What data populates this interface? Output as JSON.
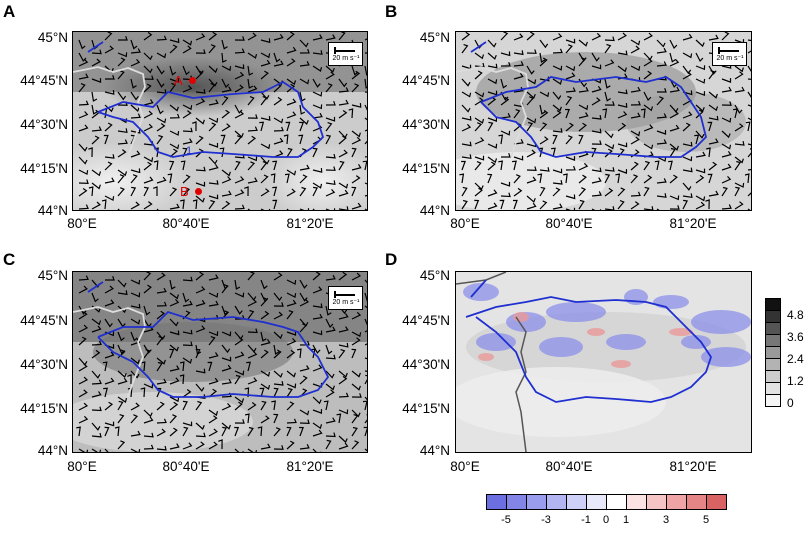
{
  "panels": [
    {
      "letter": "A"
    },
    {
      "letter": "B"
    },
    {
      "letter": "C"
    },
    {
      "letter": "D"
    }
  ],
  "lat_labels": [
    "45°N",
    "44°45'N",
    "44°30'N",
    "44°15'N",
    "44°N"
  ],
  "lon_labels": [
    "80°E",
    "80°40'E",
    "81°20'E"
  ],
  "wind_scale_label": "20 m s⁻¹",
  "contour_label": "1",
  "points": {
    "a": "A",
    "b": "B"
  },
  "gray_colorbar": {
    "ticks": [
      "4.8",
      "3.6",
      "2.4",
      "1.2",
      "0"
    ],
    "colors": [
      "#111111",
      "#333333",
      "#555555",
      "#777777",
      "#999999",
      "#b3b3b3",
      "#cccccc",
      "#e2e2e2",
      "#f5f5f5"
    ]
  },
  "diff_colorbar": {
    "ticks": [
      "-5",
      "-3",
      "-1",
      "0",
      "1",
      "3",
      "5"
    ],
    "colors": [
      "#6b6fe0",
      "#8285e6",
      "#9a9ced",
      "#b3b5f2",
      "#cfd0f7",
      "#e8e8fb",
      "#ffffff",
      "#fbe3e3",
      "#f5c4c4",
      "#efa5a5",
      "#e68585",
      "#d96262"
    ]
  },
  "colors": {
    "contour": "#1f2fd0",
    "river": "#d9d9d9",
    "point": "#e00000"
  }
}
